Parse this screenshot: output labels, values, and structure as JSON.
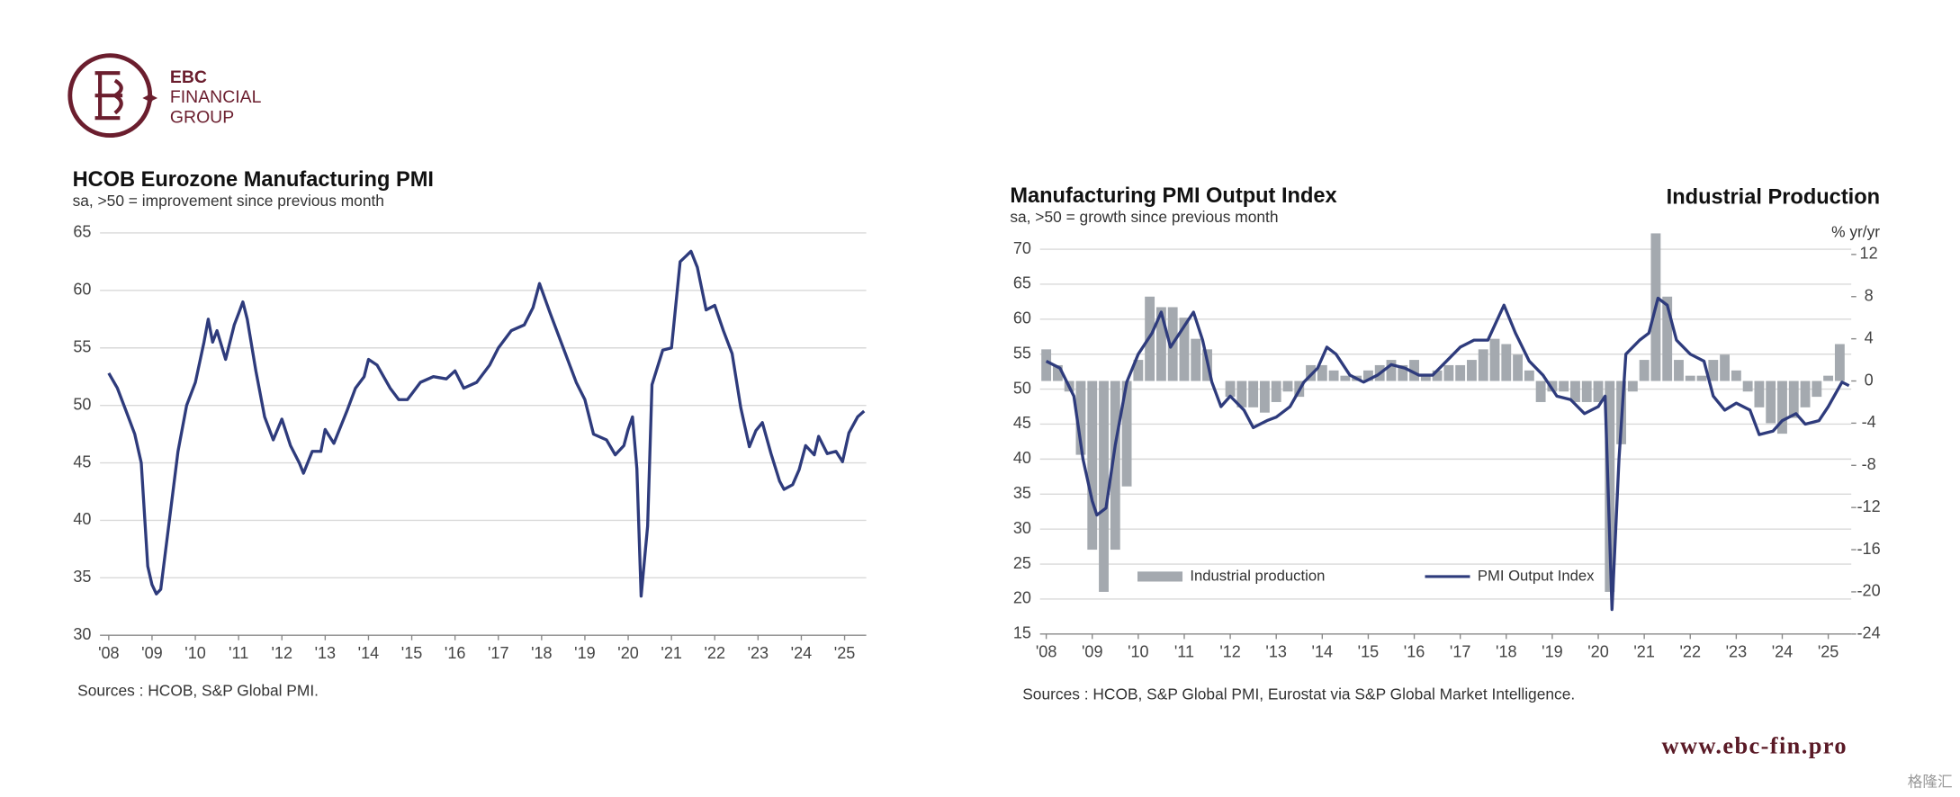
{
  "logo": {
    "name": "EBC",
    "line2": "FINANCIAL",
    "line3": "GROUP"
  },
  "footer": "www.ebc-fin.pro",
  "watermark": "格隆汇",
  "chart_data": [
    {
      "type": "line",
      "title": "HCOB Eurozone Manufacturing PMI",
      "subtitle": "sa, >50 = improvement  since previous month",
      "note": "Sources : HCOB, S&P Global PMI.",
      "xlim": [
        2008,
        2025.5
      ],
      "xticks": [
        {
          "value": 2008,
          "label": "'08"
        },
        {
          "value": 2009,
          "label": "'09"
        },
        {
          "value": 2010,
          "label": "'10"
        },
        {
          "value": 2011,
          "label": "'11"
        },
        {
          "value": 2012,
          "label": "'12"
        },
        {
          "value": 2013,
          "label": "'13"
        },
        {
          "value": 2014,
          "label": "'14"
        },
        {
          "value": 2015,
          "label": "'15"
        },
        {
          "value": 2016,
          "label": "'16"
        },
        {
          "value": 2017,
          "label": "'17"
        },
        {
          "value": 2018,
          "label": "'18"
        },
        {
          "value": 2019,
          "label": "'19"
        },
        {
          "value": 2020,
          "label": "'20"
        },
        {
          "value": 2021,
          "label": "'21"
        },
        {
          "value": 2022,
          "label": "'22"
        },
        {
          "value": 2023,
          "label": "'23"
        },
        {
          "value": 2024,
          "label": "'24"
        },
        {
          "value": 2025,
          "label": "'25"
        }
      ],
      "ylim": [
        30,
        65
      ],
      "yticks": [
        30,
        35,
        40,
        45,
        50,
        55,
        60,
        65
      ],
      "grid": true,
      "series": [
        {
          "type": "line",
          "color": "#2e3b7c",
          "x": [
            2008.0,
            2008.2,
            2008.4,
            2008.6,
            2008.75,
            2008.9,
            2009.0,
            2009.1,
            2009.2,
            2009.4,
            2009.6,
            2009.8,
            2010.0,
            2010.2,
            2010.3,
            2010.4,
            2010.5,
            2010.7,
            2010.9,
            2011.0,
            2011.1,
            2011.2,
            2011.4,
            2011.6,
            2011.8,
            2012.0,
            2012.2,
            2012.4,
            2012.5,
            2012.7,
            2012.9,
            2013.0,
            2013.2,
            2013.5,
            2013.7,
            2013.9,
            2014.0,
            2014.2,
            2014.5,
            2014.7,
            2014.9,
            2015.0,
            2015.2,
            2015.5,
            2015.8,
            2016.0,
            2016.2,
            2016.5,
            2016.8,
            2017.0,
            2017.3,
            2017.6,
            2017.8,
            2017.95,
            2018.2,
            2018.5,
            2018.8,
            2019.0,
            2019.2,
            2019.5,
            2019.7,
            2019.9,
            2020.0,
            2020.1,
            2020.2,
            2020.3,
            2020.45,
            2020.55,
            2020.8,
            2021.0,
            2021.2,
            2021.45,
            2021.6,
            2021.8,
            2022.0,
            2022.2,
            2022.4,
            2022.6,
            2022.8,
            2022.95,
            2023.1,
            2023.3,
            2023.5,
            2023.6,
            2023.8,
            2023.95,
            2024.1,
            2024.3,
            2024.4,
            2024.6,
            2024.8,
            2024.95,
            2025.1,
            2025.3,
            2025.45
          ],
          "values": [
            52.8,
            51.5,
            49.5,
            47.5,
            45,
            36,
            34.4,
            33.6,
            34,
            40,
            46,
            50,
            52,
            55.5,
            57.5,
            55.5,
            56.5,
            54,
            57,
            58,
            59,
            57.5,
            53,
            49,
            47,
            48.8,
            46.5,
            45,
            44.1,
            46,
            46,
            47.9,
            46.7,
            49.5,
            51.5,
            52.5,
            54,
            53.5,
            51.5,
            50.5,
            50.5,
            51,
            52,
            52.5,
            52.3,
            53,
            51.5,
            52,
            53.5,
            55,
            56.5,
            57,
            58.5,
            60.6,
            58,
            55,
            52,
            50.5,
            47.5,
            47,
            45.7,
            46.5,
            47.9,
            49,
            44.5,
            33.4,
            39.5,
            51.8,
            54.8,
            55,
            62.5,
            63.4,
            62,
            58.3,
            58.7,
            56.5,
            54.5,
            49.8,
            46.4,
            47.8,
            48.5,
            45.8,
            43.4,
            42.7,
            43.1,
            44.4,
            46.5,
            45.7,
            47.3,
            45.8,
            46,
            45.1,
            47.6,
            49,
            49.5
          ]
        }
      ]
    },
    {
      "type": "combo",
      "title": "Manufacturing PMI Output Index",
      "subtitle": "sa, >50 = growth  since previous month",
      "y2title": "Industrial Production",
      "y2label": "% yr/yr",
      "note": "Sources : HCOB, S&P Global PMI, Eurostat via S&P Global Market Intelligence.",
      "legend": "bottom-inside",
      "xlim": [
        2008,
        2025.5
      ],
      "xticks": [
        {
          "value": 2008,
          "label": "'08"
        },
        {
          "value": 2009,
          "label": "'09"
        },
        {
          "value": 2010,
          "label": "'10"
        },
        {
          "value": 2011,
          "label": "'11"
        },
        {
          "value": 2012,
          "label": "'12"
        },
        {
          "value": 2013,
          "label": "'13"
        },
        {
          "value": 2014,
          "label": "'14"
        },
        {
          "value": 2015,
          "label": "'15"
        },
        {
          "value": 2016,
          "label": "'16"
        },
        {
          "value": 2017,
          "label": "'17"
        },
        {
          "value": 2018,
          "label": "'18"
        },
        {
          "value": 2019,
          "label": "'19"
        },
        {
          "value": 2020,
          "label": "'20"
        },
        {
          "value": 2021,
          "label": "'21"
        },
        {
          "value": 2022,
          "label": "'22"
        },
        {
          "value": 2023,
          "label": "'23"
        },
        {
          "value": 2024,
          "label": "'24"
        },
        {
          "value": 2025,
          "label": "'25"
        }
      ],
      "ylim": [
        15,
        70
      ],
      "yticks": [
        15,
        20,
        25,
        30,
        35,
        40,
        45,
        50,
        55,
        60,
        65,
        70
      ],
      "y2lim": [
        -24,
        12.5
      ],
      "y2ticks": [
        -24,
        -20,
        -16,
        -12,
        -8,
        -4,
        0,
        4,
        8,
        12
      ],
      "grid": true,
      "series": [
        {
          "type": "bar",
          "name": "Industrial production",
          "color": "#a4a9af",
          "axis": "y2",
          "x": [
            2008.0,
            2008.25,
            2008.5,
            2008.75,
            2009.0,
            2009.25,
            2009.5,
            2009.75,
            2010.0,
            2010.25,
            2010.5,
            2010.75,
            2011.0,
            2011.25,
            2011.5,
            2011.75,
            2012.0,
            2012.25,
            2012.5,
            2012.75,
            2013.0,
            2013.25,
            2013.5,
            2013.75,
            2014.0,
            2014.25,
            2014.5,
            2014.75,
            2015.0,
            2015.25,
            2015.5,
            2015.75,
            2016.0,
            2016.25,
            2016.5,
            2016.75,
            2017.0,
            2017.25,
            2017.5,
            2017.75,
            2018.0,
            2018.25,
            2018.5,
            2018.75,
            2019.0,
            2019.25,
            2019.5,
            2019.75,
            2020.0,
            2020.25,
            2020.5,
            2020.75,
            2021.0,
            2021.25,
            2021.5,
            2021.75,
            2022.0,
            2022.25,
            2022.5,
            2022.75,
            2023.0,
            2023.25,
            2023.5,
            2023.75,
            2024.0,
            2024.25,
            2024.5,
            2024.75,
            2025.0,
            2025.25
          ],
          "values": [
            3,
            1.5,
            -1,
            -7,
            -16,
            -20,
            -16,
            -10,
            2,
            8,
            7,
            7,
            6,
            4,
            3,
            0,
            -1.5,
            -2.5,
            -2.5,
            -3,
            -2,
            -1,
            -1.5,
            1.5,
            1.5,
            1,
            0.5,
            0.5,
            1,
            1.5,
            2,
            1.5,
            2,
            0.5,
            1,
            1.5,
            1.5,
            2,
            3,
            4,
            3.5,
            2.5,
            1,
            -2,
            -1,
            -1,
            -2,
            -2,
            -2,
            -20,
            -6,
            -1,
            2,
            14,
            8,
            2,
            0.5,
            0.5,
            2,
            2.5,
            1,
            -1,
            -2.5,
            -4,
            -5,
            -3.5,
            -2.5,
            -1.5,
            0.5,
            3.5
          ]
        },
        {
          "type": "line",
          "name": "PMI Output Index",
          "color": "#2e3b7c",
          "x": [
            2008.0,
            2008.3,
            2008.6,
            2008.8,
            2009.0,
            2009.1,
            2009.3,
            2009.5,
            2009.75,
            2010.0,
            2010.3,
            2010.5,
            2010.7,
            2011.0,
            2011.2,
            2011.4,
            2011.6,
            2011.8,
            2012.0,
            2012.3,
            2012.5,
            2012.8,
            2013.0,
            2013.3,
            2013.6,
            2013.9,
            2014.1,
            2014.3,
            2014.6,
            2014.9,
            2015.2,
            2015.5,
            2015.8,
            2016.1,
            2016.4,
            2016.7,
            2017.0,
            2017.3,
            2017.6,
            2017.95,
            2018.2,
            2018.5,
            2018.8,
            2019.1,
            2019.4,
            2019.7,
            2020.0,
            2020.15,
            2020.3,
            2020.45,
            2020.6,
            2020.9,
            2021.1,
            2021.3,
            2021.5,
            2021.7,
            2022.0,
            2022.3,
            2022.5,
            2022.75,
            2023.0,
            2023.3,
            2023.5,
            2023.8,
            2024.0,
            2024.3,
            2024.5,
            2024.8,
            2025.0,
            2025.3,
            2025.45
          ],
          "values": [
            54,
            53,
            49,
            40,
            34,
            32,
            33,
            42,
            51,
            55,
            58,
            61,
            56,
            59,
            61,
            57,
            51,
            47.5,
            49,
            47,
            44.5,
            45.5,
            46,
            47.5,
            51,
            53,
            56,
            55,
            52,
            51,
            52,
            53.5,
            53,
            52,
            52,
            54,
            56,
            57,
            57,
            62,
            58,
            54,
            52,
            49,
            48.5,
            46.5,
            47.5,
            49,
            18.5,
            40,
            55,
            57,
            58,
            63,
            62,
            57,
            55,
            54,
            49,
            47,
            48,
            47,
            43.5,
            44,
            45.5,
            46.5,
            45,
            45.5,
            47.5,
            51,
            50.5
          ]
        }
      ]
    }
  ]
}
